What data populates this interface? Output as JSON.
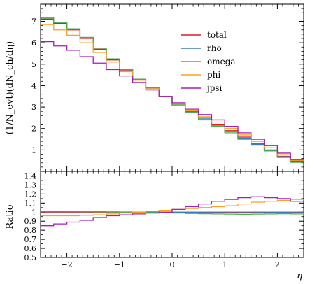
{
  "chart_data": [
    {
      "type": "line",
      "panel": "main",
      "ylabel": "(1/N_evt)(dN_ch/dη)",
      "xlim": [
        -2.5,
        2.5
      ],
      "ylim": [
        0,
        7.8
      ],
      "yticks": [
        1,
        2,
        3,
        4,
        5,
        6,
        7
      ],
      "grid": false,
      "legend_position": "top-right",
      "x_edges": [
        -2.5,
        -2.25,
        -2.0,
        -1.75,
        -1.5,
        -1.25,
        -1.0,
        -0.75,
        -0.5,
        -0.25,
        0.0,
        0.25,
        0.5,
        0.75,
        1.0,
        1.25,
        1.5,
        1.75,
        2.0,
        2.25,
        2.5
      ],
      "series": [
        {
          "name": "total",
          "color": "#e41a1c",
          "values": [
            7.1,
            6.9,
            6.6,
            6.2,
            5.7,
            5.2,
            4.7,
            4.3,
            3.9,
            3.5,
            3.1,
            2.8,
            2.5,
            2.2,
            1.9,
            1.6,
            1.3,
            1.0,
            0.7,
            0.48
          ]
        },
        {
          "name": "rho",
          "color": "#377eb8",
          "values": [
            7.15,
            6.95,
            6.65,
            6.25,
            5.75,
            5.25,
            4.75,
            4.3,
            3.9,
            3.5,
            3.1,
            2.75,
            2.45,
            2.15,
            1.85,
            1.55,
            1.25,
            0.98,
            0.68,
            0.45
          ]
        },
        {
          "name": "omega",
          "color": "#4daf4a",
          "values": [
            7.15,
            6.95,
            6.65,
            6.25,
            5.75,
            5.25,
            4.75,
            4.3,
            3.9,
            3.5,
            3.1,
            2.75,
            2.4,
            2.1,
            1.8,
            1.5,
            1.22,
            0.95,
            0.65,
            0.42
          ]
        },
        {
          "name": "phi",
          "color": "#ff9f1c",
          "values": [
            6.85,
            6.6,
            6.35,
            6.0,
            5.55,
            5.1,
            4.65,
            4.25,
            3.85,
            3.5,
            3.15,
            2.85,
            2.55,
            2.3,
            2.0,
            1.7,
            1.4,
            1.1,
            0.78,
            0.52
          ]
        },
        {
          "name": "jpsi",
          "color": "#a21fb5",
          "values": [
            6.05,
            5.85,
            5.65,
            5.35,
            5.05,
            4.75,
            4.45,
            4.15,
            3.8,
            3.5,
            3.2,
            2.9,
            2.65,
            2.4,
            2.1,
            1.8,
            1.5,
            1.2,
            0.85,
            0.55
          ]
        }
      ]
    },
    {
      "type": "line",
      "panel": "ratio",
      "ylabel": "Ratio",
      "xlabel": "η",
      "xlim": [
        -2.5,
        2.5
      ],
      "ylim": [
        0.5,
        1.45
      ],
      "xticks": [
        -2,
        -1,
        0,
        1,
        2
      ],
      "yticks": [
        0.5,
        0.6,
        0.7,
        0.8,
        0.9,
        1.0,
        1.1,
        1.2,
        1.3,
        1.4
      ],
      "ytick_labels": [
        "0.5",
        "0.6",
        "0.7",
        "0.8",
        "0.9",
        "1",
        "1.1",
        "1.2",
        "1.3",
        "1.4"
      ],
      "x_edges": [
        -2.5,
        -2.25,
        -2.0,
        -1.75,
        -1.5,
        -1.25,
        -1.0,
        -0.75,
        -0.5,
        -0.25,
        0.0,
        0.25,
        0.5,
        0.75,
        1.0,
        1.25,
        1.5,
        1.75,
        2.0,
        2.25,
        2.5
      ],
      "series": [
        {
          "name": "total",
          "color": "#e41a1c",
          "values": [
            1.0,
            1.0,
            1.0,
            1.0,
            1.0,
            1.0,
            1.0,
            1.0,
            1.0,
            1.0,
            1.0,
            1.0,
            1.0,
            1.0,
            1.0,
            1.0,
            1.0,
            1.0,
            1.0,
            1.0
          ]
        },
        {
          "name": "rho",
          "color": "#377eb8",
          "values": [
            1.005,
            1.005,
            1.005,
            1.005,
            1.005,
            1.003,
            1.002,
            1.0,
            1.0,
            1.0,
            0.998,
            0.997,
            0.996,
            0.995,
            0.994,
            0.994,
            0.995,
            0.996,
            0.997,
            0.995
          ]
        },
        {
          "name": "omega",
          "color": "#4daf4a",
          "values": [
            1.01,
            1.01,
            1.008,
            1.006,
            1.004,
            1.002,
            1.0,
            0.998,
            0.995,
            0.992,
            0.99,
            0.985,
            0.982,
            0.98,
            0.978,
            0.976,
            0.978,
            0.98,
            0.982,
            0.98
          ]
        },
        {
          "name": "phi",
          "color": "#ff9f1c",
          "values": [
            0.96,
            0.96,
            0.96,
            0.965,
            0.97,
            0.98,
            0.99,
            1.0,
            1.01,
            1.02,
            1.03,
            1.04,
            1.05,
            1.06,
            1.07,
            1.09,
            1.11,
            1.12,
            1.13,
            1.14
          ]
        },
        {
          "name": "jpsi",
          "color": "#a21fb5",
          "values": [
            0.85,
            0.87,
            0.89,
            0.91,
            0.94,
            0.96,
            0.97,
            0.98,
            0.99,
            1.0,
            1.03,
            1.06,
            1.09,
            1.12,
            1.14,
            1.16,
            1.17,
            1.16,
            1.15,
            1.12
          ]
        }
      ]
    }
  ]
}
